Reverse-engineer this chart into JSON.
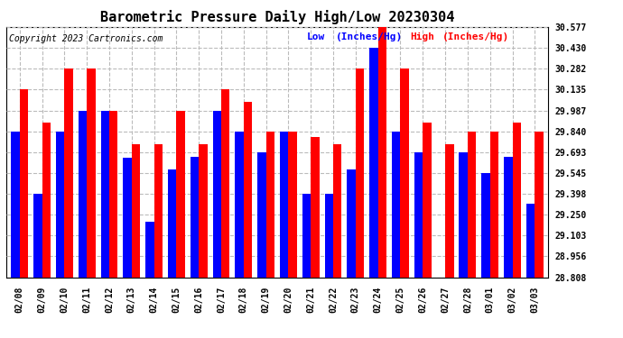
{
  "title": "Barometric Pressure Daily High/Low 20230304",
  "copyright": "Copyright 2023 Cartronics.com",
  "legend_low_label": "Low",
  "legend_high_label": "High",
  "legend_units": "(Inches/Hg)",
  "dates": [
    "02/08",
    "02/09",
    "02/10",
    "02/11",
    "02/12",
    "02/13",
    "02/14",
    "02/15",
    "02/16",
    "02/17",
    "02/18",
    "02/19",
    "02/20",
    "02/21",
    "02/22",
    "02/23",
    "02/24",
    "02/25",
    "02/26",
    "02/27",
    "02/28",
    "03/01",
    "03/02",
    "03/03"
  ],
  "high_values": [
    30.135,
    29.9,
    30.282,
    30.282,
    29.987,
    29.75,
    29.75,
    29.987,
    29.75,
    30.135,
    30.05,
    29.84,
    29.84,
    29.8,
    29.75,
    30.282,
    30.577,
    30.282,
    29.9,
    29.75,
    29.84,
    29.84,
    29.9,
    29.84
  ],
  "low_values": [
    29.84,
    29.398,
    29.84,
    29.987,
    29.987,
    29.65,
    29.2,
    29.57,
    29.66,
    29.987,
    29.84,
    29.693,
    29.84,
    29.398,
    29.398,
    29.57,
    30.43,
    29.84,
    29.693,
    28.808,
    29.693,
    29.545,
    29.66,
    29.325
  ],
  "ymin": 28.808,
  "ymax": 30.577,
  "yticks": [
    28.808,
    28.956,
    29.103,
    29.25,
    29.398,
    29.545,
    29.693,
    29.84,
    29.987,
    30.135,
    30.282,
    30.43,
    30.577
  ],
  "bar_width": 0.38,
  "high_color": "#FF0000",
  "low_color": "#0000FF",
  "bg_color": "#FFFFFF",
  "grid_color": "#BBBBBB",
  "title_fontsize": 11,
  "tick_fontsize": 7,
  "legend_fontsize": 8,
  "copyright_fontsize": 7
}
